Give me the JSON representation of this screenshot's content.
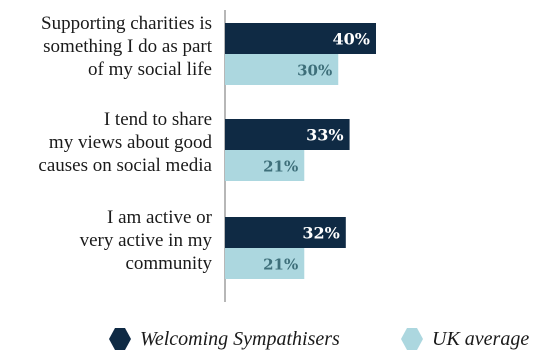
{
  "chart_data": {
    "type": "bar",
    "orientation": "horizontal",
    "categories": [
      [
        "Supporting charities is",
        "something I do as part",
        "of my social life"
      ],
      [
        "I tend to share",
        "my views about good",
        "causes on social media"
      ],
      [
        "I am active or",
        "very active in my",
        "community"
      ]
    ],
    "series": [
      {
        "name": "Welcoming Sympathisers",
        "values": [
          40,
          33,
          32
        ],
        "labels": [
          "40%",
          "33%",
          "32%"
        ],
        "color": "#0f2a44",
        "label_color": "#ffffff"
      },
      {
        "name": "UK average",
        "values": [
          30,
          21,
          21
        ],
        "labels": [
          "30%",
          "21%",
          "21%"
        ],
        "color": "#acd7df",
        "label_color": "#3e6f7a"
      }
    ],
    "xlim": [
      0,
      40
    ],
    "grid": false,
    "legend_position": "bottom"
  }
}
